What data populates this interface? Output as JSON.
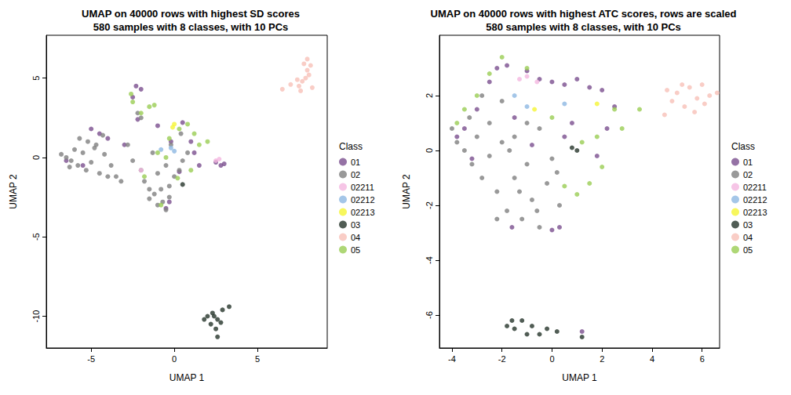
{
  "chart_data": [
    {
      "type": "scatter",
      "title": "UMAP on 40000 rows with highest SD scores\n580 samples with 8 classes, with 10 PCs",
      "x_label": "UMAP 1",
      "y_label": "UMAP 2",
      "legend_title": "Class",
      "legend": "right",
      "xlim": [
        -7.7,
        9.2
      ],
      "ylim": [
        -12,
        7.7
      ],
      "xticks": [
        -5,
        0,
        5
      ],
      "yticks": [
        -10,
        -5,
        0,
        5
      ],
      "series": [
        {
          "name": "01",
          "color": "#7B4F8E",
          "values": [
            [
              -2.3,
              4.5
            ],
            [
              -2.0,
              4.3
            ],
            [
              -2.5,
              3.8
            ],
            [
              -5.0,
              1.8
            ],
            [
              -4.5,
              1.5
            ],
            [
              -4.0,
              1.2
            ],
            [
              -5.5,
              -0.5
            ],
            [
              -6.5,
              -0.2
            ],
            [
              -3.0,
              0.8
            ],
            [
              2.5,
              -0.3
            ],
            [
              2.8,
              -0.5
            ],
            [
              3.0,
              -0.4
            ],
            [
              -0.5,
              -3.2
            ],
            [
              -0.3,
              -2.8
            ],
            [
              0.5,
              2.2
            ],
            [
              1.0,
              1.0
            ],
            [
              1.2,
              0.3
            ],
            [
              -0.2,
              1.0
            ],
            [
              0.3,
              -0.9
            ],
            [
              1.5,
              -0.5
            ],
            [
              -1.0,
              2.0
            ],
            [
              -2.2,
              2.4
            ]
          ]
        },
        {
          "name": "02",
          "color": "#808080",
          "values": [
            [
              -6.8,
              0.2
            ],
            [
              -6.5,
              0.0
            ],
            [
              -6.2,
              -0.2
            ],
            [
              -6.0,
              0.5
            ],
            [
              -5.8,
              -0.5
            ],
            [
              -5.5,
              0.3
            ],
            [
              -5.3,
              -0.8
            ],
            [
              -5.0,
              -0.3
            ],
            [
              -4.8,
              0.6
            ],
            [
              -4.5,
              -1.0
            ],
            [
              -4.2,
              0.2
            ],
            [
              -4.0,
              -1.2
            ],
            [
              -3.8,
              -0.5
            ],
            [
              -5.7,
              1.2
            ],
            [
              -5.2,
              1.0
            ],
            [
              -4.7,
              0.8
            ],
            [
              -4.3,
              1.4
            ],
            [
              -6.3,
              -0.6
            ],
            [
              -3.5,
              -1.2
            ],
            [
              -3.2,
              -1.5
            ],
            [
              -2.5,
              -0.2
            ],
            [
              -2.0,
              -0.8
            ],
            [
              -1.8,
              -1.5
            ],
            [
              -1.5,
              -2.0
            ],
            [
              -1.2,
              -2.3
            ],
            [
              -1.0,
              -1.0
            ],
            [
              -0.7,
              -2.8
            ],
            [
              -0.5,
              -0.5
            ],
            [
              -0.3,
              -1.8
            ],
            [
              0.0,
              -1.2
            ],
            [
              0.3,
              -0.8
            ],
            [
              0.5,
              -0.2
            ],
            [
              0.8,
              0.3
            ],
            [
              -1.5,
              -2.6
            ],
            [
              -1.0,
              -3.0
            ],
            [
              -0.5,
              -3.3
            ],
            [
              -0.8,
              -2.0
            ],
            [
              -1.3,
              0.3
            ],
            [
              -2.2,
              2.8
            ],
            [
              -2.0,
              2.5
            ],
            [
              -0.2,
              0.8
            ],
            [
              0.4,
              1.5
            ],
            [
              -0.3,
              -2.5
            ],
            [
              -2.8,
              0.8
            ]
          ]
        },
        {
          "name": "02211",
          "color": "#F4B6E0",
          "values": [
            [
              -2.0,
              -0.8
            ],
            [
              2.5,
              -0.2
            ],
            [
              2.7,
              -0.1
            ]
          ]
        },
        {
          "name": "02212",
          "color": "#8DB8E2",
          "values": [
            [
              -0.8,
              0.5
            ],
            [
              -0.2,
              0.6
            ],
            [
              0.0,
              0.4
            ]
          ]
        },
        {
          "name": "02213",
          "color": "#F5F534",
          "values": [
            [
              0.0,
              2.1
            ],
            [
              -0.1,
              1.9
            ]
          ]
        },
        {
          "name": "03",
          "color": "#26352A",
          "values": [
            [
              2.0,
              -10.0
            ],
            [
              2.3,
              -9.8
            ],
            [
              2.6,
              -10.2
            ],
            [
              2.9,
              -9.6
            ],
            [
              3.3,
              -9.4
            ],
            [
              2.2,
              -10.5
            ],
            [
              2.5,
              -10.8
            ],
            [
              2.6,
              -11.3
            ],
            [
              1.8,
              -10.2
            ],
            [
              2.8,
              -10.4
            ],
            [
              2.4,
              -10.0
            ],
            [
              0.5,
              -1.7
            ]
          ]
        },
        {
          "name": "04",
          "color": "#F8C0B8",
          "values": [
            [
              7.5,
              4.5
            ],
            [
              7.7,
              4.8
            ],
            [
              7.9,
              5.0
            ],
            [
              8.0,
              5.5
            ],
            [
              8.2,
              5.8
            ],
            [
              8.0,
              6.2
            ],
            [
              7.8,
              5.9
            ],
            [
              8.3,
              4.4
            ],
            [
              7.4,
              4.9
            ],
            [
              7.0,
              4.6
            ],
            [
              6.5,
              4.3
            ],
            [
              8.1,
              5.2
            ],
            [
              7.6,
              4.2
            ]
          ]
        },
        {
          "name": "05",
          "color": "#9ACD54",
          "values": [
            [
              -1.5,
              3.2
            ],
            [
              -1.2,
              3.3
            ],
            [
              -2.6,
              4.0
            ],
            [
              -2.5,
              3.5
            ],
            [
              -2.0,
              2.8
            ],
            [
              0.3,
              1.8
            ],
            [
              0.8,
              2.1
            ],
            [
              1.2,
              1.5
            ],
            [
              1.5,
              0.8
            ],
            [
              -1.0,
              0.3
            ],
            [
              -0.5,
              0.0
            ],
            [
              -1.8,
              -1.2
            ],
            [
              0.2,
              -1.3
            ],
            [
              1.0,
              -0.8
            ],
            [
              -0.8,
              -3.0
            ],
            [
              2.0,
              1.0
            ],
            [
              -0.3,
              1.2
            ]
          ]
        }
      ]
    },
    {
      "type": "scatter",
      "title": "UMAP on 40000 rows with highest ATC scores, rows are scaled\n580 samples with 8 classes, with 10 PCs",
      "x_label": "UMAP 1",
      "y_label": "UMAP 2",
      "legend_title": "Class",
      "legend": "right",
      "xlim": [
        -4.5,
        6.7
      ],
      "ylim": [
        -7.2,
        4.2
      ],
      "xticks": [
        -4,
        -2,
        0,
        2,
        4,
        6
      ],
      "yticks": [
        -6,
        -4,
        -2,
        0,
        2
      ],
      "series": [
        {
          "name": "01",
          "color": "#7B4F8E",
          "values": [
            [
              -2.2,
              3.0
            ],
            [
              -1.8,
              3.1
            ],
            [
              -1.0,
              2.9
            ],
            [
              -0.5,
              2.6
            ],
            [
              0.0,
              2.5
            ],
            [
              0.5,
              2.4
            ],
            [
              1.0,
              2.6
            ],
            [
              1.5,
              2.3
            ],
            [
              2.0,
              2.2
            ],
            [
              -3.5,
              0.8
            ],
            [
              -3.8,
              0.5
            ],
            [
              -3.0,
              1.5
            ],
            [
              -2.5,
              2.5
            ],
            [
              2.5,
              1.6
            ],
            [
              2.2,
              0.8
            ],
            [
              1.8,
              -0.2
            ],
            [
              0.0,
              -2.9
            ],
            [
              0.3,
              -2.8
            ],
            [
              -1.6,
              -2.8
            ],
            [
              -0.8,
              0.2
            ],
            [
              0.5,
              0.5
            ],
            [
              -1.5,
              1.2
            ],
            [
              1.2,
              -6.6
            ],
            [
              -3.2,
              -0.3
            ],
            [
              0.8,
              1.0
            ]
          ]
        },
        {
          "name": "02",
          "color": "#808080",
          "values": [
            [
              -4.0,
              0.8
            ],
            [
              -3.8,
              0.3
            ],
            [
              -3.5,
              0.0
            ],
            [
              -3.2,
              -0.5
            ],
            [
              -3.0,
              0.5
            ],
            [
              -2.8,
              -1.0
            ],
            [
              -2.5,
              -0.2
            ],
            [
              -2.2,
              -1.5
            ],
            [
              -2.0,
              0.3
            ],
            [
              -1.8,
              -2.2
            ],
            [
              -1.5,
              -1.0
            ],
            [
              -1.2,
              -2.5
            ],
            [
              -1.0,
              -0.5
            ],
            [
              -0.8,
              -1.8
            ],
            [
              -0.5,
              -2.8
            ],
            [
              -0.2,
              -1.2
            ],
            [
              0.0,
              -0.3
            ],
            [
              0.3,
              -2.0
            ],
            [
              -2.5,
              1.0
            ],
            [
              -2.0,
              1.8
            ],
            [
              -1.5,
              0.5
            ],
            [
              -3.3,
              1.2
            ],
            [
              -2.8,
              2.0
            ],
            [
              -1.0,
              1.0
            ],
            [
              -0.5,
              0.8
            ],
            [
              -1.3,
              -1.5
            ],
            [
              -2.2,
              -2.5
            ],
            [
              -0.6,
              -2.2
            ],
            [
              0.2,
              -0.8
            ],
            [
              -1.7,
              0.0
            ]
          ]
        },
        {
          "name": "02211",
          "color": "#F4B6E0",
          "values": [
            [
              -1.0,
              2.7
            ],
            [
              -0.6,
              2.5
            ],
            [
              -1.3,
              2.6
            ]
          ]
        },
        {
          "name": "02212",
          "color": "#8DB8E2",
          "values": [
            [
              -1.5,
              2.0
            ],
            [
              0.5,
              1.7
            ],
            [
              -1.0,
              1.6
            ]
          ]
        },
        {
          "name": "02213",
          "color": "#F5F534",
          "values": [
            [
              -0.7,
              1.5
            ],
            [
              1.8,
              1.7
            ]
          ]
        },
        {
          "name": "03",
          "color": "#26352A",
          "values": [
            [
              -1.8,
              -6.4
            ],
            [
              -1.5,
              -6.5
            ],
            [
              -1.2,
              -6.2
            ],
            [
              -0.8,
              -6.4
            ],
            [
              -0.5,
              -6.7
            ],
            [
              -0.2,
              -6.5
            ],
            [
              0.2,
              -6.6
            ],
            [
              -1.0,
              -6.7
            ],
            [
              -1.6,
              -6.2
            ],
            [
              1.2,
              -6.8
            ],
            [
              0.8,
              0.1
            ],
            [
              1.0,
              0.0
            ]
          ]
        },
        {
          "name": "04",
          "color": "#F8C0B8",
          "values": [
            [
              4.5,
              1.3
            ],
            [
              4.8,
              1.8
            ],
            [
              5.0,
              2.1
            ],
            [
              5.3,
              1.6
            ],
            [
              5.5,
              2.3
            ],
            [
              5.8,
              1.9
            ],
            [
              6.0,
              2.4
            ],
            [
              6.3,
              2.0
            ],
            [
              6.6,
              2.1
            ],
            [
              5.2,
              2.4
            ],
            [
              4.6,
              2.2
            ],
            [
              5.7,
              1.4
            ],
            [
              6.1,
              1.7
            ]
          ]
        },
        {
          "name": "05",
          "color": "#9ACD54",
          "values": [
            [
              -3.5,
              1.5
            ],
            [
              -3.0,
              2.0
            ],
            [
              -2.5,
              2.8
            ],
            [
              -2.0,
              3.4
            ],
            [
              -1.0,
              3.0
            ],
            [
              2.5,
              1.5
            ],
            [
              3.5,
              1.5
            ],
            [
              2.8,
              0.8
            ],
            [
              2.0,
              -0.6
            ],
            [
              1.5,
              -1.2
            ],
            [
              1.0,
              -1.6
            ],
            [
              0.5,
              -1.3
            ],
            [
              1.2,
              0.3
            ],
            [
              -3.8,
              1.0
            ],
            [
              0.0,
              1.2
            ],
            [
              1.8,
              0.5
            ]
          ]
        }
      ]
    }
  ]
}
